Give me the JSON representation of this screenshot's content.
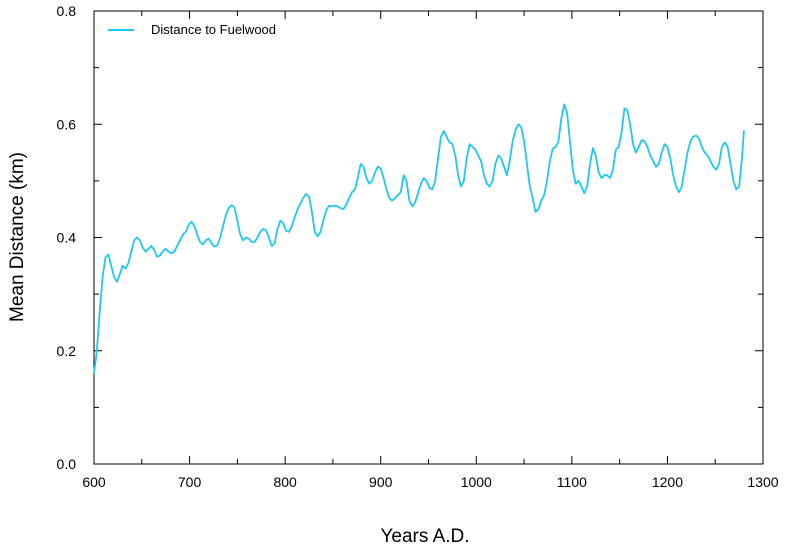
{
  "chart_data": {
    "type": "line",
    "title": "",
    "xlabel": "Years A.D.",
    "ylabel": "Mean Distance (km)",
    "xlim": [
      600,
      1300
    ],
    "ylim": [
      0,
      0.8
    ],
    "x_ticks": [
      "600",
      "700",
      "800",
      "900",
      "1000",
      "1100",
      "1200",
      "1300"
    ],
    "y_ticks": [
      "0.0",
      "0.2",
      "0.4",
      "0.6",
      "0.8"
    ],
    "grid": false,
    "legend_position": "top-left",
    "line_color": "#1ec8ef",
    "series": [
      {
        "name": "Distance to Fuelwood",
        "points": [
          [
            600,
            0.16
          ],
          [
            603,
            0.2
          ],
          [
            606,
            0.27
          ],
          [
            609,
            0.33
          ],
          [
            612,
            0.365
          ],
          [
            615,
            0.37
          ],
          [
            618,
            0.35
          ],
          [
            621,
            0.33
          ],
          [
            624,
            0.322
          ],
          [
            627,
            0.335
          ],
          [
            630,
            0.35
          ],
          [
            633,
            0.345
          ],
          [
            636,
            0.355
          ],
          [
            639,
            0.375
          ],
          [
            642,
            0.395
          ],
          [
            645,
            0.4
          ],
          [
            648,
            0.395
          ],
          [
            651,
            0.382
          ],
          [
            654,
            0.375
          ],
          [
            657,
            0.38
          ],
          [
            660,
            0.385
          ],
          [
            663,
            0.378
          ],
          [
            666,
            0.366
          ],
          [
            669,
            0.368
          ],
          [
            672,
            0.376
          ],
          [
            675,
            0.38
          ],
          [
            678,
            0.375
          ],
          [
            681,
            0.372
          ],
          [
            684,
            0.375
          ],
          [
            687,
            0.385
          ],
          [
            690,
            0.395
          ],
          [
            693,
            0.405
          ],
          [
            696,
            0.41
          ],
          [
            699,
            0.422
          ],
          [
            702,
            0.428
          ],
          [
            705,
            0.42
          ],
          [
            708,
            0.405
          ],
          [
            711,
            0.392
          ],
          [
            714,
            0.388
          ],
          [
            717,
            0.395
          ],
          [
            720,
            0.398
          ],
          [
            723,
            0.39
          ],
          [
            726,
            0.384
          ],
          [
            729,
            0.386
          ],
          [
            732,
            0.4
          ],
          [
            735,
            0.42
          ],
          [
            738,
            0.44
          ],
          [
            741,
            0.452
          ],
          [
            744,
            0.457
          ],
          [
            747,
            0.453
          ],
          [
            750,
            0.43
          ],
          [
            753,
            0.405
          ],
          [
            756,
            0.395
          ],
          [
            759,
            0.4
          ],
          [
            762,
            0.398
          ],
          [
            765,
            0.392
          ],
          [
            768,
            0.392
          ],
          [
            771,
            0.4
          ],
          [
            774,
            0.41
          ],
          [
            777,
            0.415
          ],
          [
            780,
            0.413
          ],
          [
            783,
            0.4
          ],
          [
            786,
            0.385
          ],
          [
            789,
            0.39
          ],
          [
            792,
            0.415
          ],
          [
            795,
            0.43
          ],
          [
            798,
            0.425
          ],
          [
            801,
            0.412
          ],
          [
            804,
            0.41
          ],
          [
            807,
            0.42
          ],
          [
            810,
            0.436
          ],
          [
            813,
            0.45
          ],
          [
            816,
            0.46
          ],
          [
            819,
            0.47
          ],
          [
            822,
            0.477
          ],
          [
            825,
            0.472
          ],
          [
            828,
            0.445
          ],
          [
            831,
            0.41
          ],
          [
            834,
            0.402
          ],
          [
            837,
            0.41
          ],
          [
            840,
            0.43
          ],
          [
            843,
            0.448
          ],
          [
            846,
            0.456
          ],
          [
            849,
            0.455
          ],
          [
            852,
            0.456
          ],
          [
            855,
            0.455
          ],
          [
            858,
            0.452
          ],
          [
            861,
            0.45
          ],
          [
            864,
            0.458
          ],
          [
            867,
            0.47
          ],
          [
            870,
            0.48
          ],
          [
            873,
            0.485
          ],
          [
            876,
            0.505
          ],
          [
            879,
            0.53
          ],
          [
            882,
            0.525
          ],
          [
            885,
            0.505
          ],
          [
            888,
            0.495
          ],
          [
            891,
            0.5
          ],
          [
            894,
            0.515
          ],
          [
            897,
            0.525
          ],
          [
            900,
            0.522
          ],
          [
            903,
            0.505
          ],
          [
            906,
            0.485
          ],
          [
            909,
            0.47
          ],
          [
            912,
            0.465
          ],
          [
            915,
            0.47
          ],
          [
            918,
            0.475
          ],
          [
            921,
            0.48
          ],
          [
            924,
            0.51
          ],
          [
            927,
            0.5
          ],
          [
            930,
            0.465
          ],
          [
            933,
            0.455
          ],
          [
            936,
            0.462
          ],
          [
            939,
            0.478
          ],
          [
            942,
            0.495
          ],
          [
            945,
            0.505
          ],
          [
            948,
            0.5
          ],
          [
            951,
            0.488
          ],
          [
            954,
            0.485
          ],
          [
            957,
            0.5
          ],
          [
            960,
            0.54
          ],
          [
            963,
            0.578
          ],
          [
            966,
            0.588
          ],
          [
            969,
            0.578
          ],
          [
            972,
            0.568
          ],
          [
            975,
            0.565
          ],
          [
            978,
            0.545
          ],
          [
            981,
            0.51
          ],
          [
            984,
            0.49
          ],
          [
            987,
            0.5
          ],
          [
            990,
            0.54
          ],
          [
            993,
            0.565
          ],
          [
            996,
            0.56
          ],
          [
            999,
            0.555
          ],
          [
            1002,
            0.545
          ],
          [
            1005,
            0.535
          ],
          [
            1008,
            0.51
          ],
          [
            1011,
            0.495
          ],
          [
            1014,
            0.49
          ],
          [
            1017,
            0.5
          ],
          [
            1020,
            0.53
          ],
          [
            1023,
            0.545
          ],
          [
            1026,
            0.54
          ],
          [
            1029,
            0.525
          ],
          [
            1032,
            0.51
          ],
          [
            1035,
            0.535
          ],
          [
            1038,
            0.57
          ],
          [
            1041,
            0.59
          ],
          [
            1044,
            0.6
          ],
          [
            1047,
            0.595
          ],
          [
            1050,
            0.57
          ],
          [
            1053,
            0.53
          ],
          [
            1056,
            0.49
          ],
          [
            1059,
            0.47
          ],
          [
            1062,
            0.445
          ],
          [
            1065,
            0.45
          ],
          [
            1068,
            0.465
          ],
          [
            1071,
            0.475
          ],
          [
            1074,
            0.5
          ],
          [
            1077,
            0.535
          ],
          [
            1080,
            0.557
          ],
          [
            1083,
            0.56
          ],
          [
            1086,
            0.57
          ],
          [
            1089,
            0.61
          ],
          [
            1092,
            0.635
          ],
          [
            1095,
            0.62
          ],
          [
            1098,
            0.57
          ],
          [
            1101,
            0.52
          ],
          [
            1104,
            0.495
          ],
          [
            1107,
            0.5
          ],
          [
            1110,
            0.49
          ],
          [
            1113,
            0.478
          ],
          [
            1116,
            0.49
          ],
          [
            1119,
            0.53
          ],
          [
            1122,
            0.558
          ],
          [
            1125,
            0.545
          ],
          [
            1128,
            0.515
          ],
          [
            1131,
            0.505
          ],
          [
            1134,
            0.51
          ],
          [
            1137,
            0.51
          ],
          [
            1140,
            0.505
          ],
          [
            1143,
            0.52
          ],
          [
            1146,
            0.555
          ],
          [
            1149,
            0.56
          ],
          [
            1152,
            0.585
          ],
          [
            1155,
            0.628
          ],
          [
            1158,
            0.625
          ],
          [
            1161,
            0.6
          ],
          [
            1164,
            0.565
          ],
          [
            1167,
            0.55
          ],
          [
            1170,
            0.56
          ],
          [
            1173,
            0.572
          ],
          [
            1176,
            0.57
          ],
          [
            1179,
            0.56
          ],
          [
            1182,
            0.545
          ],
          [
            1185,
            0.535
          ],
          [
            1188,
            0.525
          ],
          [
            1191,
            0.53
          ],
          [
            1194,
            0.55
          ],
          [
            1197,
            0.565
          ],
          [
            1200,
            0.56
          ],
          [
            1203,
            0.54
          ],
          [
            1206,
            0.51
          ],
          [
            1209,
            0.49
          ],
          [
            1212,
            0.48
          ],
          [
            1215,
            0.49
          ],
          [
            1218,
            0.52
          ],
          [
            1221,
            0.55
          ],
          [
            1224,
            0.57
          ],
          [
            1227,
            0.578
          ],
          [
            1230,
            0.58
          ],
          [
            1233,
            0.575
          ],
          [
            1236,
            0.56
          ],
          [
            1239,
            0.55
          ],
          [
            1242,
            0.545
          ],
          [
            1245,
            0.535
          ],
          [
            1248,
            0.525
          ],
          [
            1251,
            0.52
          ],
          [
            1254,
            0.53
          ],
          [
            1257,
            0.56
          ],
          [
            1260,
            0.568
          ],
          [
            1263,
            0.56
          ],
          [
            1266,
            0.53
          ],
          [
            1269,
            0.5
          ],
          [
            1272,
            0.485
          ],
          [
            1275,
            0.49
          ],
          [
            1278,
            0.54
          ],
          [
            1280,
            0.588
          ]
        ]
      }
    ]
  }
}
